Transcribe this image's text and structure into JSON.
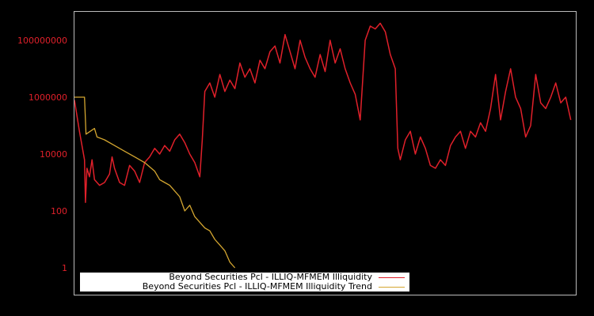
{
  "chart_data": {
    "type": "line",
    "title": "",
    "xlabel": "",
    "ylabel": "",
    "yscale": "log",
    "ylim": [
      0.3,
      5000000000
    ],
    "yticks": [
      {
        "label": "100000000",
        "value": 100000000
      },
      {
        "label": "1000000",
        "value": 1000000
      },
      {
        "label": "10000",
        "value": 10000
      },
      {
        "label": "100",
        "value": 100
      },
      {
        "label": "1",
        "value": 1
      }
    ],
    "tick_color": "#e0202a",
    "grid": false,
    "legend_position": "lower left",
    "x_index_range": [
      0,
      100
    ],
    "series": [
      {
        "name": "Beyond Securities Pcl - ILLIQ-MFMEM Illiquidity",
        "color": "#e0202a",
        "points_log10": [
          [
            0,
            5.9
          ],
          [
            1,
            4.8
          ],
          [
            2,
            3.8
          ],
          [
            2.2,
            2.3
          ],
          [
            2.5,
            3.5
          ],
          [
            3,
            3.2
          ],
          [
            3.5,
            3.8
          ],
          [
            4,
            3.1
          ],
          [
            5,
            2.9
          ],
          [
            6,
            3.0
          ],
          [
            7,
            3.3
          ],
          [
            7.5,
            3.9
          ],
          [
            8,
            3.5
          ],
          [
            9,
            3.0
          ],
          [
            10,
            2.9
          ],
          [
            11,
            3.6
          ],
          [
            12,
            3.4
          ],
          [
            13,
            3.0
          ],
          [
            14,
            3.7
          ],
          [
            15,
            3.9
          ],
          [
            16,
            4.2
          ],
          [
            17,
            4.0
          ],
          [
            18,
            4.3
          ],
          [
            19,
            4.1
          ],
          [
            20,
            4.5
          ],
          [
            21,
            4.7
          ],
          [
            22,
            4.4
          ],
          [
            23,
            4.0
          ],
          [
            24,
            3.7
          ],
          [
            25,
            3.2
          ],
          [
            25.5,
            4.5
          ],
          [
            26,
            6.2
          ],
          [
            27,
            6.5
          ],
          [
            28,
            6.0
          ],
          [
            29,
            6.8
          ],
          [
            30,
            6.2
          ],
          [
            31,
            6.6
          ],
          [
            32,
            6.3
          ],
          [
            33,
            7.2
          ],
          [
            34,
            6.7
          ],
          [
            35,
            7.0
          ],
          [
            36,
            6.5
          ],
          [
            37,
            7.3
          ],
          [
            38,
            7.0
          ],
          [
            39,
            7.6
          ],
          [
            40,
            7.8
          ],
          [
            41,
            7.2
          ],
          [
            42,
            8.2
          ],
          [
            43,
            7.6
          ],
          [
            44,
            7.0
          ],
          [
            45,
            8.0
          ],
          [
            46,
            7.4
          ],
          [
            47,
            7.0
          ],
          [
            48,
            6.7
          ],
          [
            49,
            7.5
          ],
          [
            50,
            6.9
          ],
          [
            51,
            8.0
          ],
          [
            52,
            7.2
          ],
          [
            53,
            7.7
          ],
          [
            54,
            7.0
          ],
          [
            55,
            6.5
          ],
          [
            56,
            6.1
          ],
          [
            57,
            5.2
          ],
          [
            58,
            8.0
          ],
          [
            59,
            8.5
          ],
          [
            60,
            8.4
          ],
          [
            61,
            8.6
          ],
          [
            62,
            8.3
          ],
          [
            63,
            7.5
          ],
          [
            64,
            7.0
          ],
          [
            64.5,
            4.2
          ],
          [
            65,
            3.8
          ],
          [
            66,
            4.5
          ],
          [
            67,
            4.8
          ],
          [
            68,
            4.0
          ],
          [
            69,
            4.6
          ],
          [
            70,
            4.2
          ],
          [
            71,
            3.6
          ],
          [
            72,
            3.5
          ],
          [
            73,
            3.8
          ],
          [
            74,
            3.6
          ],
          [
            75,
            4.3
          ],
          [
            76,
            4.6
          ],
          [
            77,
            4.8
          ],
          [
            78,
            4.2
          ],
          [
            79,
            4.8
          ],
          [
            80,
            4.6
          ],
          [
            81,
            5.1
          ],
          [
            82,
            4.8
          ],
          [
            83,
            5.6
          ],
          [
            84,
            6.8
          ],
          [
            85,
            5.2
          ],
          [
            86,
            6.2
          ],
          [
            87,
            7.0
          ],
          [
            88,
            6.0
          ],
          [
            89,
            5.6
          ],
          [
            90,
            4.6
          ],
          [
            91,
            5.0
          ],
          [
            92,
            6.8
          ],
          [
            93,
            5.8
          ],
          [
            94,
            5.6
          ],
          [
            95,
            6.0
          ],
          [
            96,
            6.5
          ],
          [
            97,
            5.8
          ],
          [
            98,
            6.0
          ],
          [
            99,
            5.2
          ]
        ]
      },
      {
        "name": "Beyond Securities Pcl - ILLIQ-MFMEM Illiquidity Trend",
        "color": "#d4a630",
        "points_log10": [
          [
            0,
            6.0
          ],
          [
            2,
            6.0
          ],
          [
            2.3,
            4.7
          ],
          [
            4,
            4.9
          ],
          [
            4.5,
            4.6
          ],
          [
            6,
            4.5
          ],
          [
            8,
            4.3
          ],
          [
            10,
            4.1
          ],
          [
            12,
            3.9
          ],
          [
            14,
            3.7
          ],
          [
            16,
            3.4
          ],
          [
            17,
            3.1
          ],
          [
            18,
            3.0
          ],
          [
            19,
            2.9
          ],
          [
            20,
            2.7
          ],
          [
            21,
            2.5
          ],
          [
            22,
            2.0
          ],
          [
            23,
            2.2
          ],
          [
            24,
            1.8
          ],
          [
            25,
            1.6
          ],
          [
            26,
            1.4
          ],
          [
            27,
            1.3
          ],
          [
            28,
            1.0
          ],
          [
            29,
            0.8
          ],
          [
            30,
            0.6
          ],
          [
            31,
            0.2
          ],
          [
            32,
            0.0
          ]
        ]
      }
    ]
  },
  "legend": {
    "items": [
      {
        "label": "Beyond Securities Pcl - ILLIQ-MFMEM Illiquidity",
        "color": "#e0202a"
      },
      {
        "label": "Beyond Securities Pcl - ILLIQ-MFMEM Illiquidity Trend",
        "color": "#d4a630"
      }
    ]
  }
}
